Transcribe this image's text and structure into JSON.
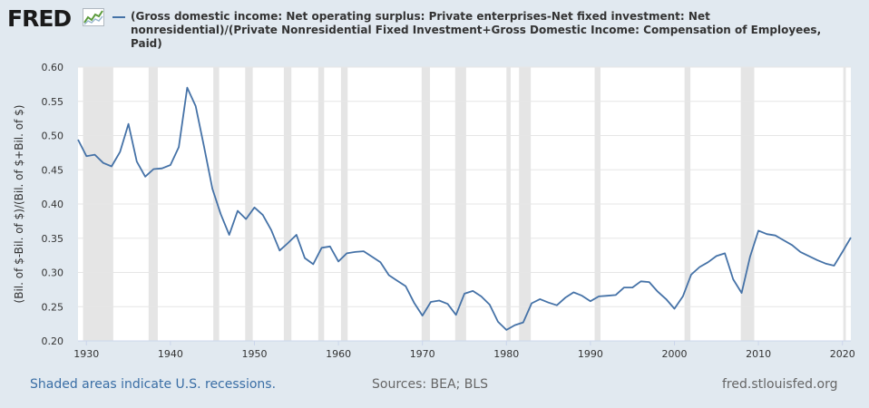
{
  "header": {
    "logo_text": "FRED",
    "logo_icon": "line-chart-icon",
    "series_title": "(Gross domestic income: Net operating surplus: Private enterprises-Net fixed investment: Net nonresidential)/(Private Nonresidential Fixed Investment+Gross Domestic Income: Compensation of Employees, Paid)"
  },
  "footer": {
    "recession_note": "Shaded areas indicate U.S. recessions.",
    "sources": "Sources: BEA; BLS",
    "url": "fred.stlouisfed.org"
  },
  "colors": {
    "line": "#4572a7",
    "recession": "#e5e5e5",
    "page_bg": "#e1e9f0",
    "plot_bg": "#ffffff",
    "grid": "#e6e6e6"
  },
  "chart_data": {
    "type": "line",
    "title": "(Gross domestic income: Net operating surplus: Private enterprises-Net fixed investment: Net nonresidential)/(Private Nonresidential Fixed Investment+Gross Domestic Income: Compensation of Employees, Paid)",
    "ylabel": "(Bil. of $-Bil. of $)/(Bil. of $+Bil. of $)",
    "xlabel": "",
    "xlim": [
      1929,
      2021
    ],
    "ylim": [
      0.2,
      0.6
    ],
    "x_ticks": [
      1930,
      1940,
      1950,
      1960,
      1970,
      1980,
      1990,
      2000,
      2010,
      2020
    ],
    "y_ticks": [
      "0.20",
      "0.25",
      "0.30",
      "0.35",
      "0.40",
      "0.45",
      "0.50",
      "0.55",
      "0.60"
    ],
    "grid": "horizontal",
    "recessions": [
      [
        1929.6,
        1933.2
      ],
      [
        1937.4,
        1938.5
      ],
      [
        1945.1,
        1945.8
      ],
      [
        1948.9,
        1949.8
      ],
      [
        1953.5,
        1954.4
      ],
      [
        1957.6,
        1958.3
      ],
      [
        1960.3,
        1961.1
      ],
      [
        1969.9,
        1970.9
      ],
      [
        1973.9,
        1975.2
      ],
      [
        1980.0,
        1980.5
      ],
      [
        1981.5,
        1982.9
      ],
      [
        1990.5,
        1991.2
      ],
      [
        2001.2,
        2001.9
      ],
      [
        2007.9,
        2009.5
      ],
      [
        2020.1,
        2020.4
      ]
    ],
    "series": [
      {
        "x": [
          1929,
          1930,
          1931,
          1932,
          1933,
          1934,
          1935,
          1936,
          1937,
          1938,
          1939,
          1940,
          1941,
          1942,
          1943,
          1944,
          1945,
          1946,
          1947,
          1948,
          1949,
          1950,
          1951,
          1952,
          1953,
          1954,
          1955,
          1956,
          1957,
          1958,
          1959,
          1960,
          1961,
          1962,
          1963,
          1964,
          1965,
          1966,
          1967,
          1968,
          1969,
          1970,
          1971,
          1972,
          1973,
          1974,
          1975,
          1976,
          1977,
          1978,
          1979,
          1980,
          1981,
          1982,
          1983,
          1984,
          1985,
          1986,
          1987,
          1988,
          1989,
          1990,
          1991,
          1992,
          1993,
          1994,
          1995,
          1996,
          1997,
          1998,
          1999,
          2000,
          2001,
          2002,
          2003,
          2004,
          2005,
          2006,
          2007,
          2008,
          2009,
          2010,
          2011,
          2012,
          2013,
          2014,
          2015,
          2016,
          2017,
          2018,
          2019,
          2020,
          2021
        ],
        "y": [
          0.494,
          0.47,
          0.472,
          0.46,
          0.455,
          0.476,
          0.517,
          0.462,
          0.44,
          0.451,
          0.452,
          0.457,
          0.483,
          0.57,
          0.543,
          0.484,
          0.422,
          0.385,
          0.355,
          0.39,
          0.378,
          0.395,
          0.384,
          0.362,
          0.332,
          0.343,
          0.355,
          0.321,
          0.312,
          0.336,
          0.338,
          0.316,
          0.328,
          0.33,
          0.331,
          0.323,
          0.315,
          0.296,
          0.288,
          0.28,
          0.256,
          0.237,
          0.257,
          0.259,
          0.254,
          0.238,
          0.269,
          0.273,
          0.265,
          0.253,
          0.228,
          0.216,
          0.223,
          0.227,
          0.255,
          0.261,
          0.256,
          0.252,
          0.263,
          0.271,
          0.266,
          0.258,
          0.265,
          0.266,
          0.267,
          0.278,
          0.278,
          0.287,
          0.286,
          0.272,
          0.261,
          0.247,
          0.265,
          0.297,
          0.308,
          0.315,
          0.324,
          0.328,
          0.29,
          0.27,
          0.323,
          0.361,
          0.356,
          0.354,
          0.347,
          0.34,
          0.33,
          0.324,
          0.318,
          0.313,
          0.31,
          0.33,
          0.351
        ]
      }
    ]
  }
}
